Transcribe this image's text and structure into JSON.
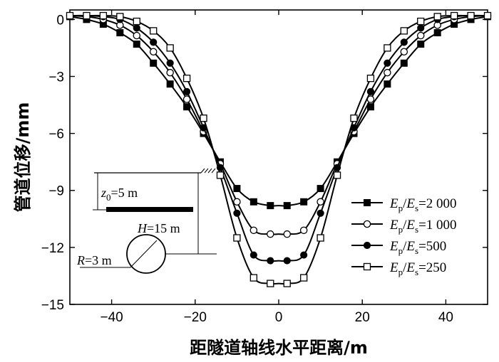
{
  "chart_data": {
    "type": "line",
    "xlabel": "距隧道轴线水平距离/m",
    "ylabel": "管道位移/mm",
    "xlim": [
      -50,
      50
    ],
    "ylim": [
      -15,
      0.5
    ],
    "xticks": [
      -40,
      -20,
      0,
      20,
      40
    ],
    "yticks": [
      0,
      -3,
      -6,
      -9,
      -12,
      -15
    ],
    "grid": false,
    "legend_position": "lower-right",
    "x": [
      -50,
      -46,
      -42,
      -38,
      -34,
      -30,
      -26,
      -22,
      -18,
      -14,
      -10,
      -6,
      -2,
      0,
      2,
      6,
      10,
      14,
      18,
      22,
      26,
      30,
      34,
      38,
      42,
      46,
      50
    ],
    "series": [
      {
        "name_parts": [
          "E",
          "p",
          "/",
          "E",
          "s",
          "=2 000"
        ],
        "marker": "filled-square",
        "values": [
          0.15,
          0.0,
          -0.25,
          -0.7,
          -1.3,
          -2.3,
          -3.4,
          -4.6,
          -6.0,
          -7.5,
          -8.9,
          -9.6,
          -9.8,
          -9.8,
          -9.8,
          -9.6,
          -8.9,
          -7.5,
          -6.0,
          -4.6,
          -3.4,
          -2.3,
          -1.3,
          -0.7,
          -0.25,
          0.0,
          0.15
        ]
      },
      {
        "name_parts": [
          "E",
          "p",
          "/",
          "E",
          "s",
          "=1 000"
        ],
        "marker": "open-circle",
        "values": [
          0.2,
          0.15,
          0.0,
          -0.3,
          -0.85,
          -1.7,
          -2.8,
          -4.2,
          -5.9,
          -7.6,
          -9.6,
          -11.1,
          -11.3,
          -11.3,
          -11.3,
          -11.1,
          -9.6,
          -7.6,
          -5.9,
          -4.2,
          -2.8,
          -1.7,
          -0.85,
          -0.3,
          0.0,
          0.15,
          0.2
        ]
      },
      {
        "name_parts": [
          "E",
          "p",
          "/",
          "E",
          "s",
          "=500"
        ],
        "marker": "filled-circle",
        "values": [
          0.2,
          0.2,
          0.15,
          0.0,
          -0.45,
          -1.2,
          -2.3,
          -3.8,
          -5.7,
          -7.8,
          -10.2,
          -12.4,
          -12.7,
          -12.7,
          -12.7,
          -12.4,
          -10.2,
          -7.8,
          -5.7,
          -3.8,
          -2.3,
          -1.2,
          -0.45,
          0.0,
          0.15,
          0.2,
          0.2
        ]
      },
      {
        "name_parts": [
          "E",
          "p",
          "/",
          "E",
          "s",
          "=250"
        ],
        "marker": "open-square",
        "values": [
          0.2,
          0.2,
          0.2,
          0.15,
          -0.1,
          -0.6,
          -1.5,
          -3.1,
          -5.2,
          -8.2,
          -11.5,
          -13.6,
          -13.9,
          -13.9,
          -13.9,
          -13.6,
          -11.5,
          -8.2,
          -5.2,
          -3.1,
          -1.5,
          -0.6,
          -0.1,
          0.15,
          0.2,
          0.2,
          0.2
        ]
      }
    ],
    "inset": {
      "z0_label": [
        "z",
        "0",
        "=5 m"
      ],
      "h_label": [
        "H",
        "=15 m"
      ],
      "r_label": [
        "R",
        "=3 m"
      ]
    }
  }
}
